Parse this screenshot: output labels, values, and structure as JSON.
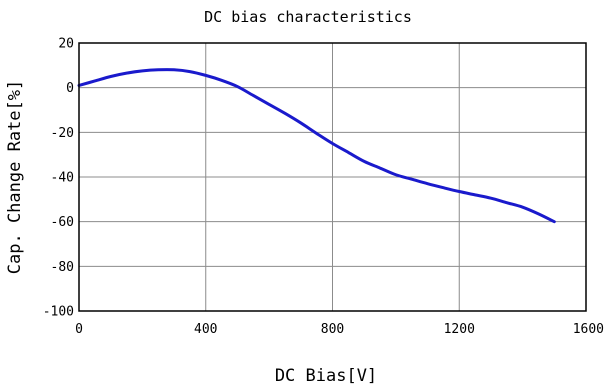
{
  "chart_data": {
    "type": "line",
    "title": "DC bias characteristics",
    "xlabel": "DC Bias[V]",
    "ylabel": "Cap. Change Rate[%]",
    "xlim": [
      0,
      1600
    ],
    "ylim": [
      -100,
      20
    ],
    "xticks": [
      0,
      400,
      800,
      1200,
      1600
    ],
    "yticks": [
      20,
      0,
      -20,
      -40,
      -60,
      -80,
      -100
    ],
    "xtick_labels": [
      "0",
      "400",
      "800",
      "1200",
      "1600"
    ],
    "ytick_labels": [
      "20",
      "0",
      "-20",
      "-40",
      "-60",
      "-80",
      "-100"
    ],
    "grid": true,
    "series_color": "#1a1acc",
    "series": [
      {
        "x": [
          0,
          50,
          100,
          150,
          200,
          250,
          300,
          350,
          400,
          450,
          500,
          550,
          600,
          650,
          700,
          750,
          800,
          850,
          900,
          950,
          1000,
          1050,
          1100,
          1150,
          1200,
          1250,
          1300,
          1350,
          1400,
          1450,
          1500
        ],
        "y": [
          1,
          3,
          5,
          6.5,
          7.5,
          8,
          8,
          7.2,
          5.5,
          3.3,
          0.5,
          -3.5,
          -7.5,
          -11.5,
          -15.8,
          -20.5,
          -25,
          -29,
          -33,
          -36,
          -39,
          -41,
          -43,
          -44.8,
          -46.5,
          -48,
          -49.5,
          -51.5,
          -53.5,
          -56.5,
          -60
        ]
      }
    ]
  }
}
